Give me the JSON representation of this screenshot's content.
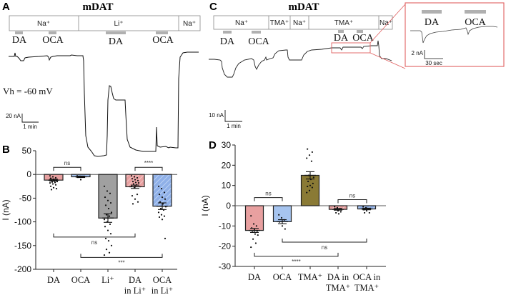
{
  "panels": {
    "A": {
      "letter": "A",
      "title": "mDAT",
      "conditions": [
        "Na⁺",
        "Li⁺",
        "Na⁺"
      ],
      "drugs": [
        "DA",
        "OCA",
        "DA",
        "OCA"
      ],
      "holding_potential": "Vh = -60 mV",
      "scale_y": "20 nA",
      "scale_x": "1 min"
    },
    "C": {
      "letter": "C",
      "title": "mDAT",
      "conditions": [
        "Na⁺",
        "TMA⁺",
        "Na⁺",
        "TMA⁺",
        "Na⁺"
      ],
      "drugs": [
        "DA",
        "OCA",
        "DA",
        "OCA"
      ],
      "scale_y": "10 nA",
      "scale_x": "1 min",
      "inset": {
        "drugs": [
          "DA",
          "OCA"
        ],
        "scale_y": "2 nA",
        "scale_x": "30 sec"
      }
    },
    "B": {
      "letter": "B"
    },
    "D": {
      "letter": "D"
    }
  },
  "colors": {
    "da": "#e8a0a0",
    "oca": "#a6c4ef",
    "li": "#a0a0a0",
    "tma": "#8a7a35",
    "inset_border": "#e06060",
    "drug_bar": "#b0b0b0"
  },
  "chart_data": [
    {
      "id": "B",
      "type": "bar",
      "title": "",
      "xlabel": "",
      "ylabel": "I (nA)",
      "ylim": [
        -200,
        50
      ],
      "yticks": [
        50,
        0,
        -50,
        -100,
        -150,
        -200
      ],
      "categories": [
        "DA",
        "OCA",
        "Li⁺",
        "DA in Li⁺",
        "OCA in Li⁺"
      ],
      "category_lines": [
        [
          "DA"
        ],
        [
          "OCA"
        ],
        [
          "Li⁺"
        ],
        [
          "DA",
          "in Li⁺"
        ],
        [
          "OCA",
          "in Li⁺"
        ]
      ],
      "values": [
        -12,
        -5,
        -92,
        -26,
        -67
      ],
      "sem": [
        2,
        1.5,
        9,
        3.5,
        7
      ],
      "fills": [
        "da",
        "oca",
        "li",
        "da",
        "oca"
      ],
      "hatched": [
        false,
        false,
        false,
        true,
        true
      ],
      "points": [
        [
          -3,
          -5,
          -7,
          -8,
          -10,
          -12,
          -13,
          -14,
          -15,
          -16,
          -17,
          -18,
          -20,
          -22,
          -25,
          -28,
          -30,
          -32
        ],
        [
          -3,
          -4,
          -5,
          -6,
          -11
        ],
        [
          -25,
          -35,
          -40,
          -48,
          -55,
          -60,
          -65,
          -72,
          -80,
          -85,
          -88,
          -95,
          -100,
          -105,
          -110,
          -118,
          -125,
          -135,
          -140,
          -150,
          -158,
          -165,
          -170
        ],
        [
          -3,
          -5,
          -7,
          -9,
          -11,
          -13,
          -15,
          -17,
          -18,
          -20,
          -22,
          -25,
          -28,
          -42,
          -45,
          -52,
          -58,
          -62
        ],
        [
          -25,
          -30,
          -38,
          -42,
          -48,
          -52,
          -58,
          -62,
          -68,
          -72,
          -75,
          -80,
          -85,
          -88,
          -90,
          -95,
          -135
        ]
      ],
      "significance": [
        {
          "groups": [
            0,
            1
          ],
          "label": "ns",
          "y": 15
        },
        {
          "groups": [
            3,
            4
          ],
          "label": "****",
          "y": 15
        },
        {
          "groups": [
            0,
            3
          ],
          "label": "ns",
          "y": -132
        },
        {
          "groups": [
            1,
            4
          ],
          "label": "***",
          "y": -175
        }
      ]
    },
    {
      "id": "D",
      "type": "bar",
      "title": "",
      "xlabel": "",
      "ylabel": "I (nA)",
      "ylim": [
        -30,
        30
      ],
      "yticks": [
        30,
        20,
        10,
        0,
        -10,
        -20,
        -30
      ],
      "categories": [
        "DA",
        "OCA",
        "TMA⁺",
        "DA in TMA⁺",
        "OCA in TMA⁺"
      ],
      "category_lines": [
        [
          "DA"
        ],
        [
          "OCA"
        ],
        [
          "TMA⁺"
        ],
        [
          "DA in",
          "TMA⁺"
        ],
        [
          "OCA in",
          "TMA⁺"
        ]
      ],
      "values": [
        -12.2,
        -7.9,
        15,
        -1.8,
        -1.6
      ],
      "sem": [
        1,
        1,
        1.8,
        0.4,
        0.4
      ],
      "fills": [
        "da",
        "oca",
        "tma",
        "da",
        "oca"
      ],
      "hatched": [
        false,
        false,
        false,
        true,
        true
      ],
      "points": [
        [
          -5,
          -9,
          -10,
          -11,
          -12,
          -12.5,
          -13,
          -14,
          -14.5,
          -16.5,
          -18.5,
          -20.5
        ],
        [
          -4.5,
          -6,
          -7,
          -8,
          -10,
          -11.5
        ],
        [
          6.5,
          7.5,
          9,
          9.5,
          10,
          11,
          12,
          13,
          14,
          15,
          22,
          23.5,
          25,
          26.5,
          28
        ],
        [
          -0.5,
          -1,
          -1.5,
          -2,
          -2.5,
          -3,
          -3.5,
          -4
        ],
        [
          -0.5,
          -1,
          -1.5,
          -2,
          -2.5,
          -3.5,
          -3.5
        ]
      ],
      "significance": [
        {
          "groups": [
            0,
            1
          ],
          "label": "ns",
          "y": 4
        },
        {
          "groups": [
            3,
            4
          ],
          "label": "ns",
          "y": 3
        },
        {
          "groups": [
            1,
            4
          ],
          "label": "ns",
          "y": -18
        },
        {
          "groups": [
            0,
            3
          ],
          "label": "****",
          "y": -25
        }
      ]
    }
  ]
}
